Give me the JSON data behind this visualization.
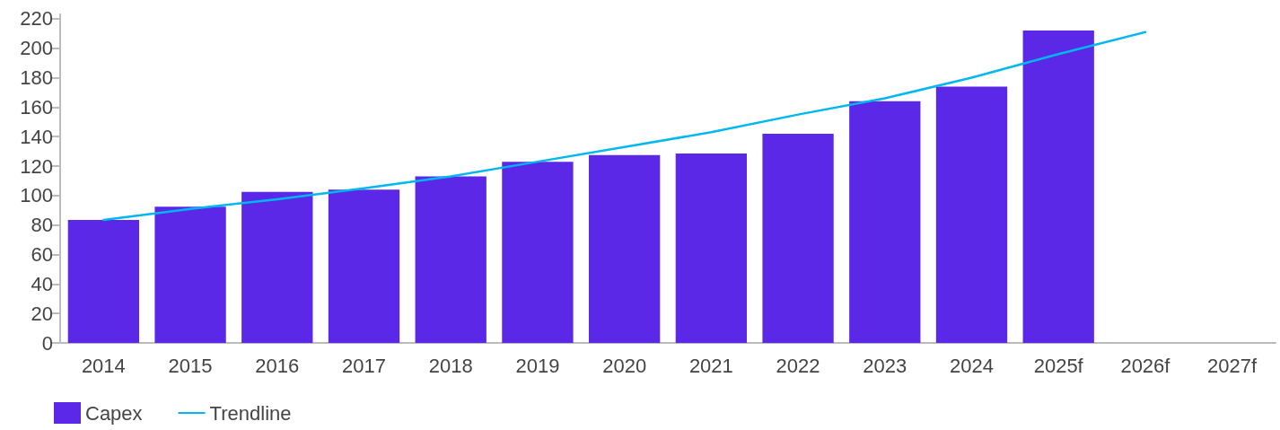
{
  "chart_data": {
    "type": "bar",
    "categories": [
      "2014",
      "2015",
      "2016",
      "2017",
      "2018",
      "2019",
      "2020",
      "2021",
      "2022",
      "2023",
      "2024",
      "2025f",
      "2026f",
      "2027f"
    ],
    "series": [
      {
        "name": "Capex",
        "color": "#5a28e6",
        "values": [
          83.5,
          92.5,
          102.5,
          104,
          113,
          123,
          127.5,
          128.5,
          142,
          164,
          174,
          212,
          null,
          null
        ]
      },
      {
        "name": "Trendline",
        "type": "line",
        "color": "#00b8f0",
        "values": [
          83.5,
          91,
          97.5,
          105,
          113,
          123,
          133,
          143,
          155,
          166,
          180,
          196,
          211,
          null
        ]
      }
    ],
    "ylim": [
      0,
      223
    ],
    "yticks": [
      0,
      20,
      40,
      60,
      80,
      100,
      120,
      140,
      160,
      180,
      200,
      220
    ],
    "grid": false,
    "legend": "bottom left",
    "marker": "none",
    "line_style": "solid"
  }
}
